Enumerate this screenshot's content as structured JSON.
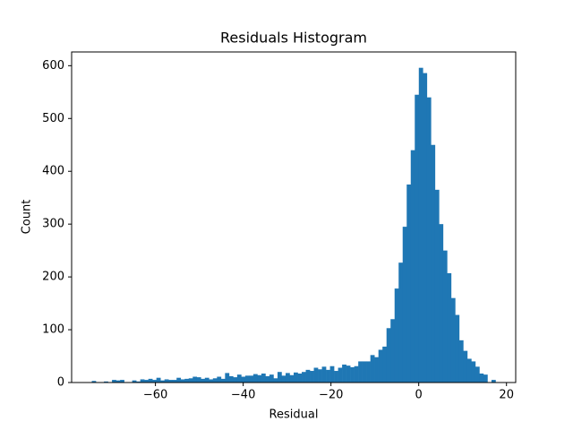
{
  "chart_data": {
    "type": "histogram",
    "title": "Residuals Histogram",
    "x_label": "Residual",
    "y_label": "Count",
    "color": "#1f77b4",
    "bins": [
      -74.5,
      -73.58,
      -72.66,
      -71.74,
      -70.82,
      -69.9,
      -68.98,
      -68.06,
      -67.14,
      -66.22,
      -65.3,
      -64.38,
      -63.46,
      -62.54,
      -61.62,
      -60.7,
      -59.78,
      -58.86,
      -57.94,
      -57.02,
      -56.1,
      -55.18,
      -54.26,
      -53.34,
      -52.42,
      -51.5,
      -50.58,
      -49.66,
      -48.74,
      -47.82,
      -46.9,
      -45.98,
      -45.06,
      -44.14,
      -43.22,
      -42.3,
      -41.38,
      -40.46,
      -39.54,
      -38.62,
      -37.7,
      -36.78,
      -35.86,
      -34.94,
      -34.02,
      -33.1,
      -32.18,
      -31.26,
      -30.34,
      -29.42,
      -28.5,
      -27.58,
      -26.66,
      -25.74,
      -24.82,
      -23.9,
      -22.98,
      -22.06,
      -21.14,
      -20.22,
      -19.3,
      -18.38,
      -17.46,
      -16.54,
      -15.62,
      -14.7,
      -13.78,
      -12.86,
      -11.94,
      -11.02,
      -10.1,
      -9.18,
      -8.26,
      -7.34,
      -6.42,
      -5.5,
      -4.58,
      -3.66,
      -2.74,
      -1.82,
      -0.9,
      0.02,
      0.94,
      1.86,
      2.78,
      3.7,
      4.62,
      5.54,
      6.46,
      7.38,
      8.3,
      9.22,
      10.14,
      11.06,
      11.98,
      12.9,
      13.82,
      14.74,
      15.66,
      16.58,
      17.5
    ],
    "values": [
      3,
      0,
      0,
      2,
      0,
      5,
      4,
      5,
      0,
      0,
      4,
      2,
      6,
      5,
      7,
      5,
      9,
      4,
      6,
      5,
      5,
      9,
      6,
      7,
      8,
      11,
      10,
      7,
      9,
      6,
      8,
      11,
      7,
      18,
      12,
      10,
      15,
      11,
      13,
      13,
      16,
      14,
      17,
      12,
      15,
      8,
      20,
      13,
      18,
      14,
      19,
      17,
      20,
      24,
      22,
      28,
      25,
      30,
      24,
      31,
      22,
      28,
      34,
      32,
      29,
      31,
      40,
      40,
      40,
      52,
      48,
      62,
      68,
      103,
      120,
      178,
      227,
      295,
      375,
      440,
      545,
      596,
      586,
      540,
      450,
      365,
      300,
      250,
      207,
      160,
      128,
      80,
      60,
      45,
      40,
      30,
      17,
      15,
      0,
      5
    ],
    "xlim": [
      -79.1,
      22.1
    ],
    "ylim": [
      0,
      626
    ],
    "xticks": [
      {
        "value": -60,
        "label": "−60"
      },
      {
        "value": -40,
        "label": "−40"
      },
      {
        "value": -20,
        "label": "−20"
      },
      0,
      20
    ],
    "yticks": [
      0,
      100,
      200,
      300,
      400,
      500,
      600
    ]
  }
}
